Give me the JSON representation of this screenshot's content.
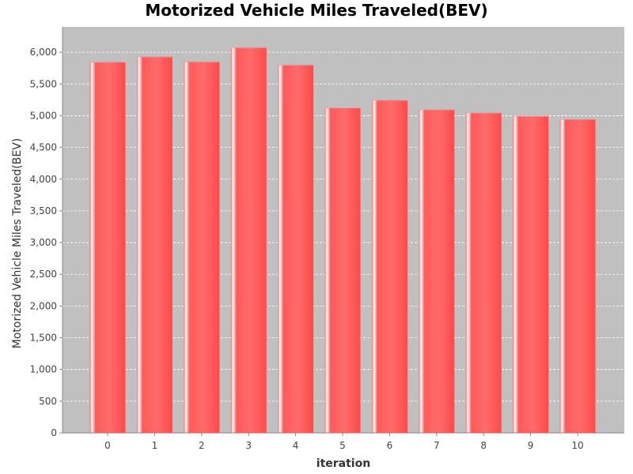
{
  "chart_data": {
    "type": "bar",
    "title": "Motorized Vehicle Miles Traveled(BEV)",
    "xlabel": "iteration",
    "ylabel": "Motorized Vehicle Miles Traveled(BEV)",
    "categories": [
      "0",
      "1",
      "2",
      "3",
      "4",
      "5",
      "6",
      "7",
      "8",
      "9",
      "10"
    ],
    "series": [
      {
        "values": [
          5850,
          5935,
          5855,
          6080,
          5805,
          5130,
          5250,
          5100,
          5050,
          5000,
          4950
        ]
      }
    ],
    "ylim": [
      0,
      6400
    ],
    "yticks": [
      0,
      500,
      1000,
      1500,
      2000,
      2500,
      3000,
      3500,
      4000,
      4500,
      5000,
      5500,
      6000
    ],
    "ytick_labels": [
      "0",
      "500",
      "1,000",
      "1,500",
      "2,000",
      "2,500",
      "3,000",
      "3,500",
      "4,000",
      "4,500",
      "5,000",
      "5,500",
      "6,000"
    ],
    "grid": true,
    "legend": "none",
    "colors": {
      "bar": "#ff5555",
      "plot_background": "#c0c0c0",
      "gridline": "#ffffff"
    }
  }
}
